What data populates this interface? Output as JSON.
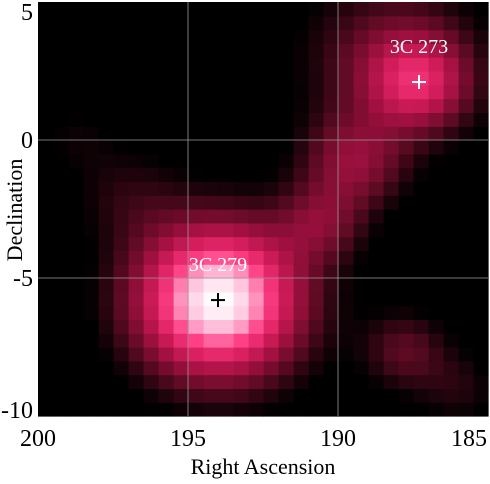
{
  "chart_data": {
    "type": "heatmap",
    "title": "",
    "xlabel": "Right Ascension",
    "ylabel": "Declination",
    "xlim": [
      200,
      185
    ],
    "ylim": [
      -10,
      5
    ],
    "xticks": [
      200,
      195,
      190,
      185
    ],
    "yticks": [
      5,
      0,
      -5,
      -10
    ],
    "xtick_labels": [
      "200",
      "195",
      "190",
      "185"
    ],
    "ytick_labels": [
      "5",
      "0",
      "-5",
      "-10"
    ],
    "grid": true,
    "colormap": [
      "#000000",
      "#5a0a22",
      "#a01040",
      "#d81e5e",
      "#ff3f85",
      "#ffb0d2",
      "#ffffff"
    ],
    "sources": [
      {
        "name": "3C 279",
        "ra": 194.0,
        "dec": -5.8,
        "amplitude": 1.0,
        "sigma": 1.9,
        "marker_color": "#000000"
      },
      {
        "name": "3C 273",
        "ra": 187.3,
        "dec": 2.1,
        "amplitude": 0.42,
        "sigma": 1.2,
        "marker_color": "#ffffff"
      }
    ],
    "diffuse_emission": [
      {
        "ra": 188.3,
        "dec": 3.0,
        "amplitude": 0.25,
        "sigma": 2.0
      },
      {
        "ra": 189.5,
        "dec": -0.8,
        "amplitude": 0.32,
        "sigma": 1.2
      },
      {
        "ra": 190.6,
        "dec": -3.0,
        "amplitude": 0.25,
        "sigma": 1.0
      },
      {
        "ra": 187.8,
        "dec": -7.6,
        "amplitude": 0.22,
        "sigma": 1.0
      },
      {
        "ra": 197.0,
        "dec": -2.0,
        "amplitude": 0.12,
        "sigma": 1.3
      },
      {
        "ra": 198.8,
        "dec": 0.2,
        "amplitude": 0.08,
        "sigma": 1.0
      },
      {
        "ra": 186.0,
        "dec": -9.0,
        "amplitude": 0.12,
        "sigma": 1.0
      }
    ]
  }
}
